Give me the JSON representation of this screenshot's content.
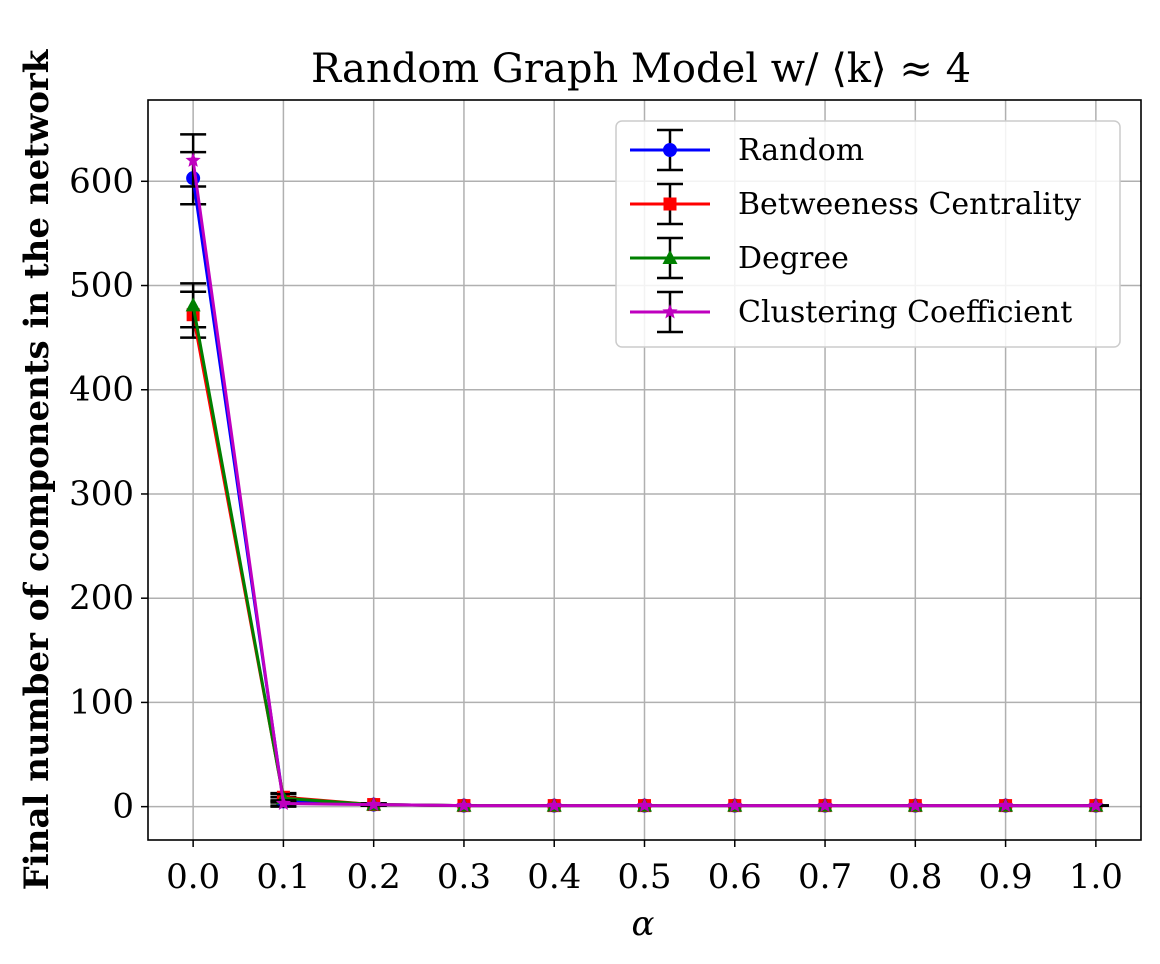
{
  "chart_data": {
    "type": "line",
    "title": "Random Graph Model w/ ⟨k⟩ ≈ 4",
    "xlabel": "α",
    "ylabel": "Final number of components in the network",
    "x": [
      0.0,
      0.1,
      0.2,
      0.3,
      0.4,
      0.5,
      0.6,
      0.7,
      0.8,
      0.9,
      1.0
    ],
    "xtick_labels": [
      "0.0",
      "0.1",
      "0.2",
      "0.3",
      "0.4",
      "0.5",
      "0.6",
      "0.7",
      "0.8",
      "0.9",
      "1.0"
    ],
    "ytick_values": [
      0,
      100,
      200,
      300,
      400,
      500,
      600
    ],
    "ytick_labels": [
      "0",
      "100",
      "200",
      "300",
      "400",
      "500",
      "600"
    ],
    "xlim": [
      -0.05,
      1.05
    ],
    "ylim": [
      -32,
      678
    ],
    "grid": true,
    "legend_position": "top-right",
    "series": [
      {
        "name": "Random",
        "color": "#0000ff",
        "marker": "circle",
        "values": [
          603,
          5,
          2,
          1,
          1,
          1,
          1,
          1,
          1,
          1,
          1
        ],
        "errors": [
          25,
          4,
          1,
          0,
          0,
          0,
          0,
          0,
          0,
          0,
          0
        ]
      },
      {
        "name": "Betweeness Centrality",
        "color": "#ff0000",
        "marker": "square",
        "values": [
          472,
          9,
          2,
          1,
          1,
          1,
          1,
          1,
          1,
          1,
          1
        ],
        "errors": [
          22,
          4,
          1,
          0,
          0,
          0,
          0,
          0,
          0,
          0,
          0
        ]
      },
      {
        "name": "Degree",
        "color": "#008000",
        "marker": "triangle",
        "values": [
          481,
          8,
          2,
          1,
          1,
          1,
          1,
          1,
          1,
          1,
          1
        ],
        "errors": [
          21,
          4,
          1,
          0,
          0,
          0,
          0,
          0,
          0,
          0,
          0
        ]
      },
      {
        "name": "Clustering Coefficient",
        "color": "#bf00bf",
        "marker": "star",
        "values": [
          620,
          3,
          2,
          1,
          1,
          1,
          1,
          1,
          1,
          1,
          1
        ],
        "errors": [
          25,
          3,
          1,
          0,
          0,
          0,
          0,
          0,
          0,
          0,
          0
        ]
      }
    ]
  }
}
